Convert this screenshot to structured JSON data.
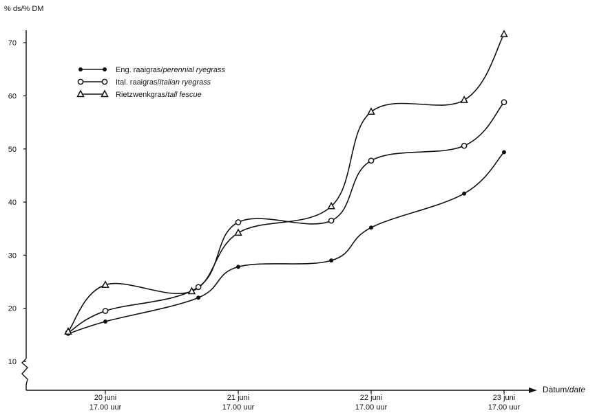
{
  "chart_data": {
    "type": "line",
    "ylabel": "% ds/% DM",
    "xlabel_main": "Datum/",
    "xlabel_italic": "date",
    "ylim": [
      10,
      70
    ],
    "y_ticks": [
      10,
      20,
      30,
      40,
      50,
      60,
      70
    ],
    "x_ticks": [
      {
        "x": 1,
        "line1": "20 juni",
        "line2": "17.00 uur"
      },
      {
        "x": 2,
        "line1": "21 juni",
        "line2": "17.00 uur"
      },
      {
        "x": 3,
        "line1": "22 juni",
        "line2": "17.00 uur"
      },
      {
        "x": 4,
        "line1": "23 juni",
        "line2": "17.00 uur"
      }
    ],
    "legend_position": "top-left",
    "series": [
      {
        "name_main": "Eng. raaigras/",
        "name_italic": "perennial ryegrass",
        "marker": "dot",
        "x": [
          0.72,
          1.0,
          1.7,
          2.0,
          2.7,
          3.0,
          3.7,
          4.0
        ],
        "y": [
          15.2,
          17.5,
          22.0,
          27.8,
          29.0,
          35.2,
          41.6,
          49.4
        ]
      },
      {
        "name_main": "Ital. raaigras/",
        "name_italic": "Italian ryegrass",
        "marker": "circle",
        "x": [
          0.72,
          1.0,
          1.7,
          2.0,
          2.7,
          3.0,
          3.7,
          4.0
        ],
        "y": [
          15.4,
          19.5,
          24.0,
          36.2,
          36.5,
          47.8,
          50.6,
          58.8
        ]
      },
      {
        "name_main": "Rietzwenkgras/",
        "name_italic": "tall fescue",
        "marker": "triangle",
        "x": [
          0.72,
          1.0,
          1.65,
          2.0,
          2.7,
          3.0,
          3.7,
          4.0
        ],
        "y": [
          15.6,
          24.4,
          23.2,
          34.2,
          39.2,
          57.0,
          59.2,
          71.6
        ]
      }
    ]
  }
}
